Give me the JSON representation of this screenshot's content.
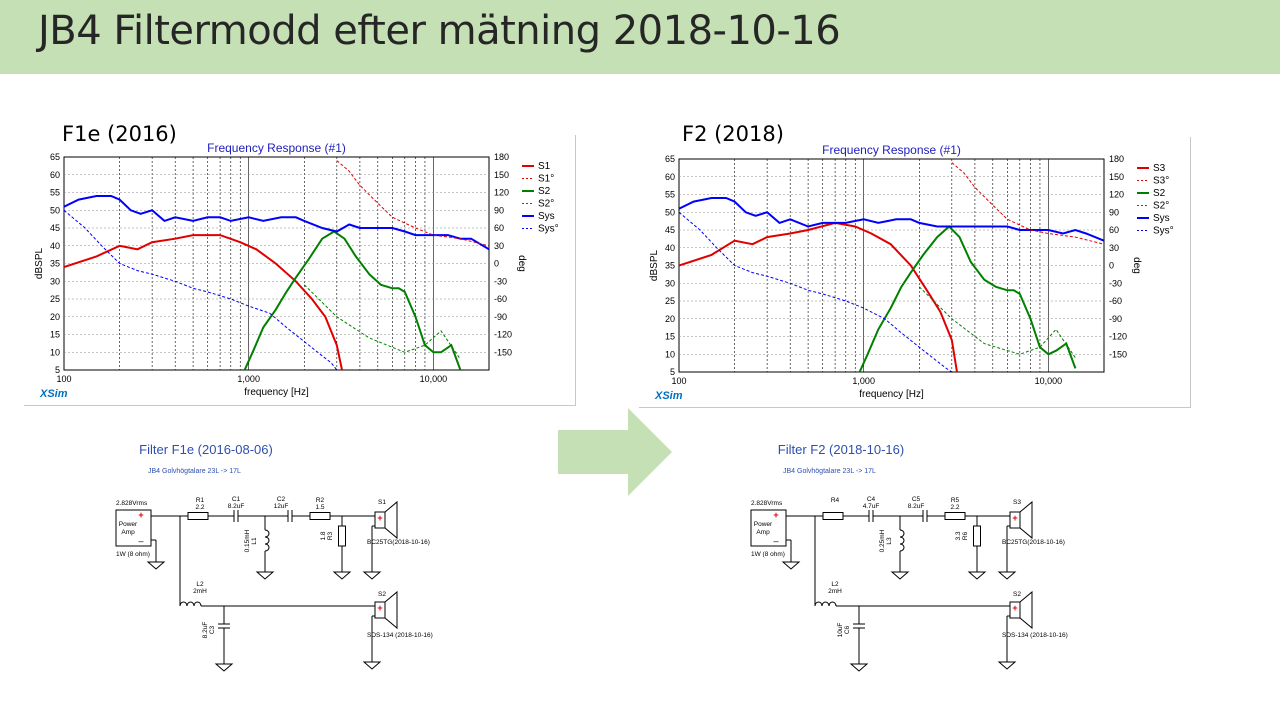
{
  "slide": {
    "title": "JB4 Filtermodd efter mätning 2018-10-16",
    "accent": "#c5e0b4"
  },
  "panels": [
    {
      "label": "F1e (2016)",
      "brand": "XSim"
    },
    {
      "label": "F2 (2018)",
      "brand": "XSim"
    }
  ],
  "chart_data": [
    {
      "type": "line",
      "title": "Frequency Response (#1)",
      "xlabel": "frequency [Hz]",
      "ylabel": "dBSPL",
      "y2label": "deg",
      "xscale": "log",
      "xlim": [
        100,
        20000
      ],
      "ylim": [
        5,
        65
      ],
      "y2lim": [
        -180,
        180
      ],
      "x_ticks": [
        "100",
        "1,000",
        "10,000"
      ],
      "y_ticks": [
        "65",
        "60",
        "55",
        "50",
        "45",
        "40",
        "35",
        "30",
        "25",
        "20",
        "15",
        "10",
        "5"
      ],
      "y2_ticks": [
        "180",
        "150",
        "120",
        "90",
        "60",
        "30",
        "0",
        "-30",
        "-60",
        "-90",
        "-120",
        "-150"
      ],
      "grid": true,
      "legend_position": "right",
      "legend": [
        {
          "name": "S1",
          "color": "#e00000",
          "dash": false
        },
        {
          "name": "S1°",
          "color": "#e00000",
          "dash": true
        },
        {
          "name": "S2",
          "color": "#008000",
          "dash": false
        },
        {
          "name": "S2°",
          "color": "#008000",
          "dash": true
        },
        {
          "name": "Sys",
          "color": "#0000ff",
          "dash": false
        },
        {
          "name": "Sys°",
          "color": "#0000ff",
          "dash": true
        }
      ],
      "series": [
        {
          "name": "S1",
          "color": "#e00000",
          "x": [
            100,
            150,
            200,
            250,
            300,
            400,
            500,
            700,
            900,
            1100,
            1400,
            1800,
            2200,
            2600,
            3000,
            3200
          ],
          "y": [
            34,
            37,
            40,
            39,
            41,
            42,
            43,
            43,
            41,
            39,
            35,
            30,
            25,
            20,
            12,
            5
          ]
        },
        {
          "name": "S2",
          "color": "#008000",
          "x": [
            950,
            1050,
            1200,
            1400,
            1600,
            1800,
            2100,
            2500,
            2900,
            3300,
            3800,
            4500,
            5200,
            6000,
            6500,
            7000,
            8000,
            9000,
            10000,
            11000,
            12500,
            14000
          ],
          "y": [
            5,
            10,
            17,
            22,
            27,
            31,
            36,
            42,
            44,
            42,
            37,
            32,
            29,
            28,
            28,
            27,
            20,
            12,
            10,
            10,
            12,
            5
          ]
        },
        {
          "name": "Sys",
          "color": "#0000ff",
          "x": [
            100,
            120,
            150,
            180,
            200,
            230,
            260,
            300,
            350,
            400,
            500,
            600,
            700,
            800,
            1000,
            1200,
            1500,
            1800,
            2000,
            2500,
            3000,
            3500,
            4000,
            5000,
            6000,
            7000,
            8000,
            10000,
            12000,
            14000,
            16000,
            20000
          ],
          "y": [
            51,
            53,
            54,
            54,
            53,
            50,
            49,
            50,
            47,
            48,
            47,
            48,
            48,
            47,
            48,
            47,
            48,
            48,
            47,
            45,
            44,
            46,
            45,
            45,
            45,
            44,
            43,
            43,
            43,
            42,
            42,
            39
          ]
        },
        {
          "name": "Sys°",
          "color": "#0000ff",
          "x": [
            100,
            130,
            160,
            200,
            250,
            300,
            400,
            500,
            600,
            800,
            1000,
            1300,
            1600,
            2000,
            2500,
            2800,
            3000
          ],
          "y": [
            50,
            45,
            40,
            35,
            33,
            32,
            30,
            28,
            27,
            25,
            23,
            21,
            17,
            13,
            9,
            7,
            5
          ]
        },
        {
          "name": "S1°",
          "color": "#e00000",
          "x": [
            3000,
            3500,
            4000,
            5000,
            6000,
            8000,
            10000,
            14000,
            20000
          ],
          "y": [
            64,
            61,
            57,
            52,
            48,
            45,
            43,
            42,
            40
          ]
        },
        {
          "name": "S2°",
          "color": "#008000",
          "x": [
            2000,
            3000,
            4500,
            7000,
            9000,
            11000,
            14000
          ],
          "y": [
            29,
            20,
            14,
            10,
            12,
            16,
            8
          ]
        }
      ]
    },
    {
      "type": "line",
      "title": "Frequency Response (#1)",
      "xlabel": "frequency [Hz]",
      "ylabel": "dBSPL",
      "y2label": "deg",
      "xscale": "log",
      "xlim": [
        100,
        20000
      ],
      "ylim": [
        5,
        65
      ],
      "y2lim": [
        -180,
        180
      ],
      "x_ticks": [
        "100",
        "1,000",
        "10,000"
      ],
      "y_ticks": [
        "65",
        "60",
        "55",
        "50",
        "45",
        "40",
        "35",
        "30",
        "25",
        "20",
        "15",
        "10",
        "5"
      ],
      "y2_ticks": [
        "180",
        "150",
        "120",
        "90",
        "60",
        "30",
        "0",
        "-30",
        "-60",
        "-90",
        "-120",
        "-150"
      ],
      "grid": true,
      "legend_position": "right",
      "legend": [
        {
          "name": "S3",
          "color": "#e00000",
          "dash": false
        },
        {
          "name": "S3°",
          "color": "#e00000",
          "dash": true
        },
        {
          "name": "S2",
          "color": "#008000",
          "dash": false
        },
        {
          "name": "S2°",
          "color": "#008000",
          "dash": true
        },
        {
          "name": "Sys",
          "color": "#0000ff",
          "dash": false
        },
        {
          "name": "Sys°",
          "color": "#0000ff",
          "dash": true
        }
      ],
      "series": [
        {
          "name": "S3",
          "color": "#e00000",
          "x": [
            100,
            150,
            200,
            250,
            300,
            400,
            500,
            700,
            900,
            1100,
            1400,
            1800,
            2200,
            2600,
            3000,
            3200
          ],
          "y": [
            35,
            38,
            42,
            41,
            43,
            44,
            45,
            47,
            46,
            44,
            41,
            35,
            28,
            22,
            14,
            5
          ]
        },
        {
          "name": "S2",
          "color": "#008000",
          "x": [
            950,
            1050,
            1200,
            1400,
            1600,
            1800,
            2100,
            2500,
            2900,
            3300,
            3800,
            4500,
            5200,
            6000,
            6500,
            7000,
            8000,
            9000,
            10000,
            11000,
            12500,
            14000
          ],
          "y": [
            5,
            10,
            17,
            23,
            29,
            33,
            38,
            43,
            46,
            43,
            36,
            31,
            29,
            28,
            28,
            27,
            20,
            12,
            10,
            11,
            13,
            6
          ]
        },
        {
          "name": "Sys",
          "color": "#0000ff",
          "x": [
            100,
            120,
            150,
            180,
            200,
            230,
            260,
            300,
            350,
            400,
            500,
            600,
            700,
            800,
            1000,
            1200,
            1500,
            1800,
            2000,
            2500,
            3000,
            3500,
            4000,
            5000,
            6000,
            7000,
            8000,
            10000,
            12000,
            14000,
            16000,
            20000
          ],
          "y": [
            51,
            53,
            54,
            54,
            53,
            50,
            49,
            50,
            47,
            48,
            46,
            47,
            47,
            47,
            48,
            47,
            48,
            48,
            47,
            46,
            46,
            46,
            46,
            46,
            46,
            45,
            45,
            45,
            44,
            45,
            44,
            42
          ]
        },
        {
          "name": "Sys°",
          "color": "#0000ff",
          "x": [
            100,
            130,
            160,
            200,
            250,
            300,
            400,
            500,
            600,
            800,
            1000,
            1300,
            1600,
            2000,
            2500,
            2800,
            3000
          ],
          "y": [
            50,
            45,
            40,
            35,
            33,
            32,
            30,
            28,
            27,
            25,
            23,
            20,
            16,
            12,
            8,
            6,
            5
          ]
        },
        {
          "name": "S3°",
          "color": "#e00000",
          "x": [
            3000,
            3500,
            4000,
            5000,
            6000,
            8000,
            10000,
            14000,
            20000
          ],
          "y": [
            64,
            61,
            57,
            52,
            48,
            45,
            44,
            43,
            41
          ]
        },
        {
          "name": "S2°",
          "color": "#008000",
          "x": [
            2000,
            3000,
            4500,
            7000,
            9000,
            11000,
            14000
          ],
          "y": [
            29,
            20,
            13,
            10,
            12,
            17,
            9
          ]
        }
      ]
    }
  ],
  "schematics": [
    {
      "title": "Filter F1e (2016-08-06)",
      "subtitle": "JB4 Golvhögtalare 23L -> 17L",
      "source_label": "2.828Vrms",
      "amp_label": "Power Amp",
      "load_label": "1W (8 ohm)",
      "plus": "+",
      "minus": "–",
      "top_label": "BC25TG(2018-10-16)",
      "bottom_label": "SDS-134 (2018-10-16)",
      "components": [
        {
          "name": "R1",
          "value": "2.2"
        },
        {
          "name": "C1",
          "value": "8.2uF"
        },
        {
          "name": "C2",
          "value": "12uF"
        },
        {
          "name": "R2",
          "value": "1.5"
        },
        {
          "name": "S1",
          "value": ""
        },
        {
          "name": "L1",
          "value": "0.15mH"
        },
        {
          "name": "R3",
          "value": "1.8"
        },
        {
          "name": "L2",
          "value": "2mH"
        },
        {
          "name": "C3",
          "value": "8.2uF"
        },
        {
          "name": "S2",
          "value": ""
        }
      ]
    },
    {
      "title": "Filter F2 (2018-10-16)",
      "subtitle": "JB4 Golvhögtalare 23L -> 17L",
      "source_label": "2.828Vrms",
      "amp_label": "Power Amp",
      "load_label": "1W (8 ohm)",
      "plus": "+",
      "minus": "–",
      "top_label": "BC25TG(2018-10-16)",
      "bottom_label": "SDS-134 (2018-10-16)",
      "components": [
        {
          "name": "R4",
          "value": ""
        },
        {
          "name": "C4",
          "value": "4.7uF"
        },
        {
          "name": "C5",
          "value": "8.2uF"
        },
        {
          "name": "R5",
          "value": "2.2"
        },
        {
          "name": "S3",
          "value": ""
        },
        {
          "name": "L3",
          "value": "0.25mH"
        },
        {
          "name": "R6",
          "value": "3.3"
        },
        {
          "name": "L2",
          "value": "2mH"
        },
        {
          "name": "C6",
          "value": "10uF"
        },
        {
          "name": "S2",
          "value": ""
        }
      ]
    }
  ]
}
